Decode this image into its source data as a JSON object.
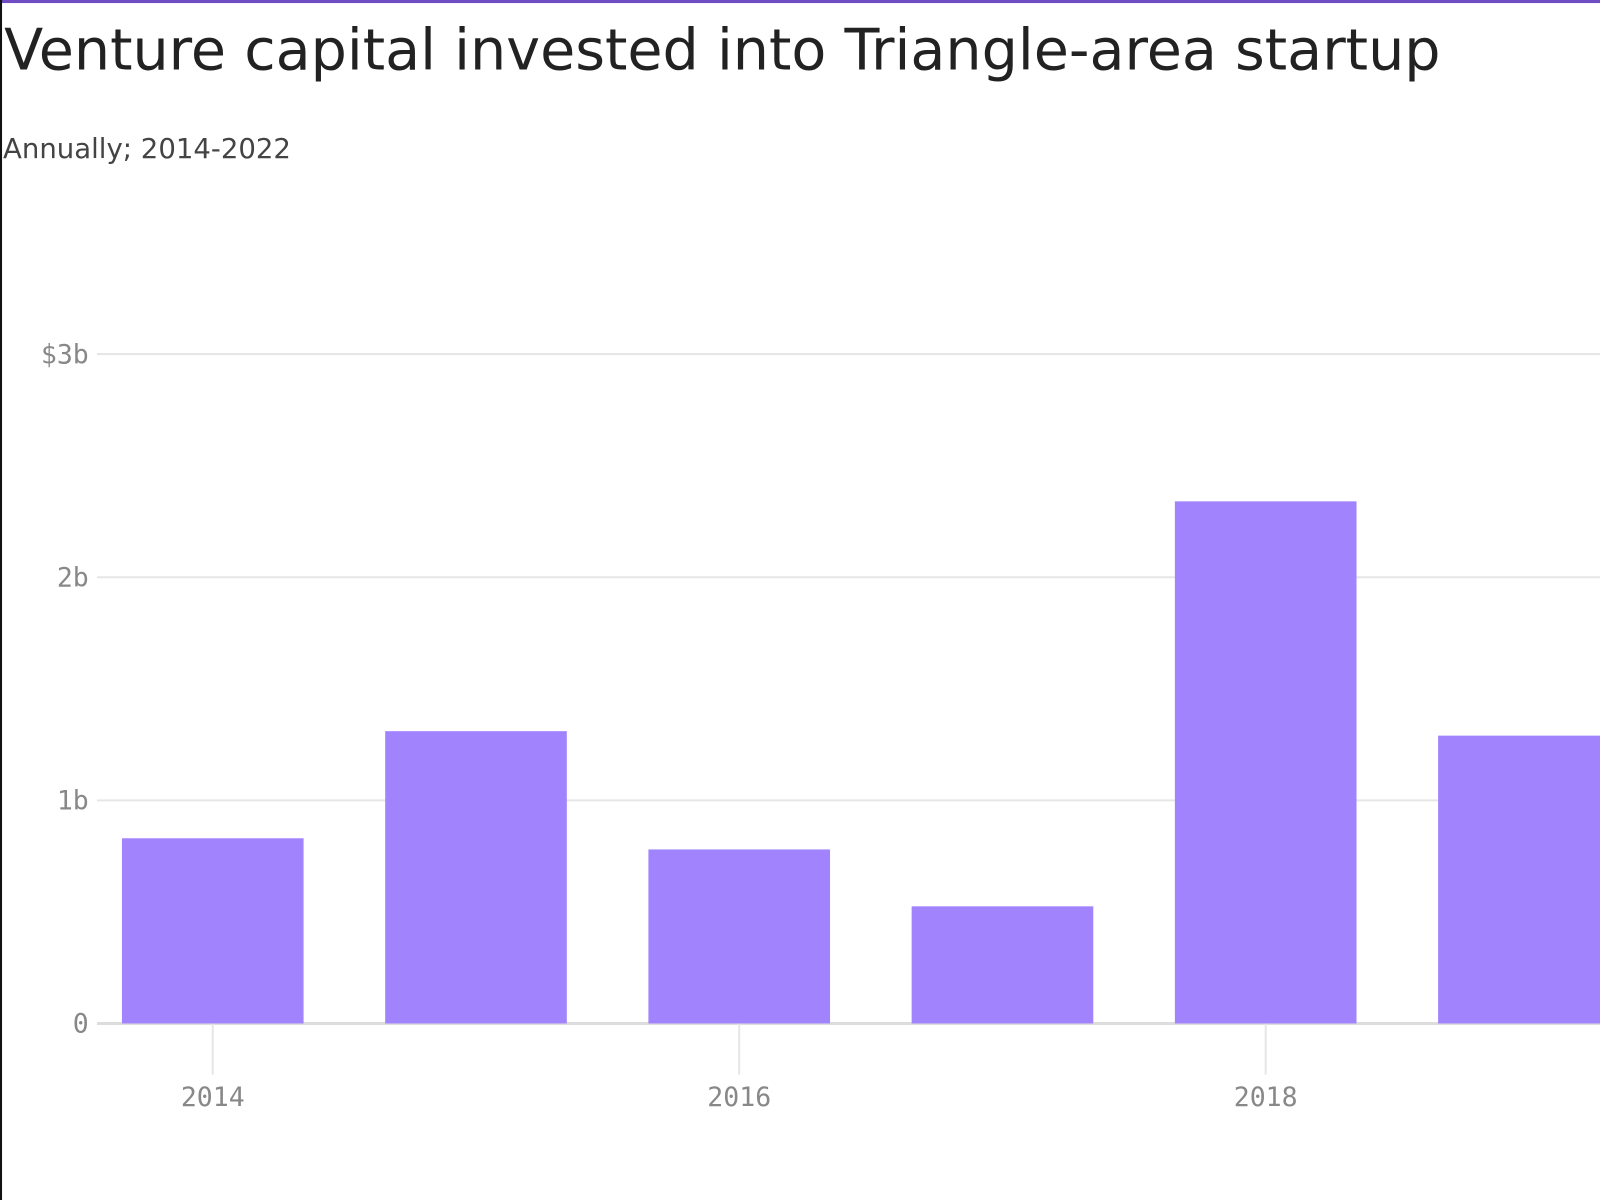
{
  "chart_data": {
    "type": "bar",
    "title": "Venture capital invested into Triangle-area startup",
    "subtitle": "Annually; 2014-2022",
    "x": [
      2014,
      2015,
      2016,
      2017,
      2018,
      2019
    ],
    "values": [
      0.83,
      1.31,
      0.78,
      0.525,
      2.34,
      1.29
    ],
    "color": "#a083fd",
    "xlim": [
      2013.56,
      2019.27
    ],
    "xticks": [
      2014,
      2016,
      2018
    ],
    "ylim": [
      0,
      3
    ],
    "yticks": [
      0,
      {
        "value": 1,
        "label": "1b"
      },
      {
        "value": 2,
        "label": "2b"
      },
      {
        "value": 3,
        "label": "$3b"
      }
    ],
    "grid": true
  }
}
